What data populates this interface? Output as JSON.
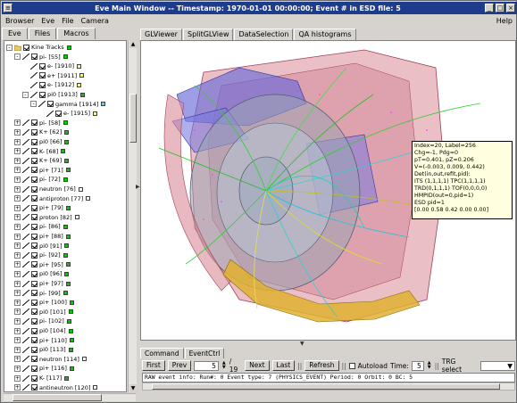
{
  "window": {
    "title": "Eve Main Window -- Timestamp: 1970-01-01 00:00:00; Event # in ESD file: 5"
  },
  "menubar": {
    "items": [
      "Browser",
      "Eve",
      "File",
      "Camera"
    ],
    "help": "Help"
  },
  "left_tabs": [
    "Eve",
    "Files",
    "Macros"
  ],
  "tree": [
    {
      "indent": 0,
      "label": "Kine Tracks",
      "color": "#00cc00",
      "expander": "-",
      "folder": true
    },
    {
      "indent": 1,
      "label": "pi- [55]",
      "color": "#00cc00",
      "expander": "-"
    },
    {
      "indent": 2,
      "label": "e- [1910]",
      "color": "#ffff66",
      "expander": ""
    },
    {
      "indent": 2,
      "label": "e+ [1911]",
      "color": "#ffff66",
      "expander": ""
    },
    {
      "indent": 2,
      "label": "e- [1912]",
      "color": "#ffff66",
      "expander": ""
    },
    {
      "indent": 2,
      "label": "pi0 [1913]",
      "color": "#00cc00",
      "expander": "-"
    },
    {
      "indent": 3,
      "label": "gamma [1914]",
      "color": "#66ccff",
      "expander": "-"
    },
    {
      "indent": 4,
      "label": "e- [1915]",
      "color": "#ffff66",
      "expander": ""
    },
    {
      "indent": 1,
      "label": "pi- [58]",
      "color": "#00cc00",
      "expander": "+"
    },
    {
      "indent": 1,
      "label": "K+ [62]",
      "color": "#00cc00",
      "expander": "+"
    },
    {
      "indent": 1,
      "label": "pi0 [66]",
      "color": "#00cc00",
      "expander": "+"
    },
    {
      "indent": 1,
      "label": "K- [68]",
      "color": "#00cc00",
      "expander": "+"
    },
    {
      "indent": 1,
      "label": "K+ [69]",
      "color": "#00cc00",
      "expander": "+"
    },
    {
      "indent": 1,
      "label": "pi+ [71]",
      "color": "#00cc00",
      "expander": "+"
    },
    {
      "indent": 1,
      "label": "pi- [72]",
      "color": "#00cc00",
      "expander": "+"
    },
    {
      "indent": 1,
      "label": "neutron [76]",
      "color": "#ffffff",
      "expander": "+"
    },
    {
      "indent": 1,
      "label": "antiproton [77]",
      "color": "#ffffff",
      "expander": "+"
    },
    {
      "indent": 1,
      "label": "pi+ [79]",
      "color": "#00cc00",
      "expander": "+"
    },
    {
      "indent": 1,
      "label": "proton [82]",
      "color": "#ffffff",
      "expander": "+"
    },
    {
      "indent": 1,
      "label": "pi- [86]",
      "color": "#00cc00",
      "expander": "+"
    },
    {
      "indent": 1,
      "label": "pi+ [88]",
      "color": "#00cc00",
      "expander": "+"
    },
    {
      "indent": 1,
      "label": "pi0 [91]",
      "color": "#00cc00",
      "expander": "+"
    },
    {
      "indent": 1,
      "label": "pi- [92]",
      "color": "#00cc00",
      "expander": "+"
    },
    {
      "indent": 1,
      "label": "pi+ [95]",
      "color": "#00cc00",
      "expander": "+"
    },
    {
      "indent": 1,
      "label": "pi0 [96]",
      "color": "#00cc00",
      "expander": "+"
    },
    {
      "indent": 1,
      "label": "pi+ [97]",
      "color": "#00cc00",
      "expander": "+"
    },
    {
      "indent": 1,
      "label": "pi- [99]",
      "color": "#00cc00",
      "expander": "+"
    },
    {
      "indent": 1,
      "label": "pi+ [100]",
      "color": "#00cc00",
      "expander": "+"
    },
    {
      "indent": 1,
      "label": "pi0 [101]",
      "color": "#00cc00",
      "expander": "+"
    },
    {
      "indent": 1,
      "label": "pi- [102]",
      "color": "#00cc00",
      "expander": "+"
    },
    {
      "indent": 1,
      "label": "pi0 [104]",
      "color": "#00cc00",
      "expander": "+"
    },
    {
      "indent": 1,
      "label": "pi+ [110]",
      "color": "#00cc00",
      "expander": "+"
    },
    {
      "indent": 1,
      "label": "pi0 [113]",
      "color": "#00cc00",
      "expander": "+"
    },
    {
      "indent": 1,
      "label": "neutron [114]",
      "color": "#ffffff",
      "expander": "+"
    },
    {
      "indent": 1,
      "label": "pi+ [116]",
      "color": "#00cc00",
      "expander": "+"
    },
    {
      "indent": 1,
      "label": "K- [117]",
      "color": "#00cc00",
      "expander": "+"
    },
    {
      "indent": 1,
      "label": "antineutron [120]",
      "color": "#ffffff",
      "expander": "+"
    }
  ],
  "right_tabs": [
    "GLViewer",
    "SplitGLView",
    "DataSelection",
    "QA histograms"
  ],
  "tooltip": [
    "Index=20, Label=256",
    "Chg=-1, Pdg=0",
    "pT=0.401, pZ=0.206",
    "V=(-0.003, 0.009, 0.442)",
    "Det(in,out,refit,pid):",
    "ITS (1,1,1,1)  TPC(1,1,1,1)",
    "TRD(0,1,1,1) TOF(0,0,0,0)",
    "HMPID(out=0,pid=1)",
    "ESD pid=1",
    "[0.00 0.58 0.42 0.00 0.00]"
  ],
  "bottom_tabs": [
    "Command",
    "EventCtrl"
  ],
  "controls": {
    "first": "First",
    "prev": "Prev",
    "event_value": "5",
    "event_total": "/ 19",
    "next": "Next",
    "last": "Last",
    "refresh": "Refresh",
    "autoload": "Autoload",
    "time_label": "Time:",
    "time_value": "5",
    "trg_label": "TRG select",
    "trg_value": ""
  },
  "console": {
    "text": "RAW event info: Run#: 0  Event type: 7 (PHYSICS_EVENT)  Period: 0  Orbit: 0  BC: 5"
  }
}
